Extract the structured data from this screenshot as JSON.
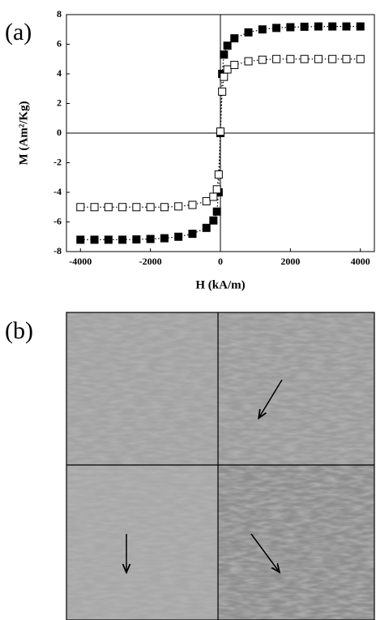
{
  "panels": [
    "(a)",
    "(b)"
  ],
  "chart_data": {
    "type": "line",
    "x_label": "H (kA/m)",
    "y_label": "M (Am²/Kg)",
    "x": [
      -4000,
      -3600,
      -3200,
      -2800,
      -2400,
      -2000,
      -1600,
      -1200,
      -800,
      -400,
      -200,
      -100,
      -50,
      0,
      50,
      100,
      200,
      400,
      800,
      1200,
      1600,
      2000,
      2400,
      2800,
      3200,
      3600,
      4000
    ],
    "series": [
      {
        "color": "#000000",
        "fill": "#000000",
        "values": [
          -7.2,
          -7.2,
          -7.2,
          -7.2,
          -7.18,
          -7.15,
          -7.1,
          -7.0,
          -6.8,
          -6.4,
          -5.9,
          -5.3,
          -4.0,
          0,
          4.0,
          5.3,
          5.9,
          6.4,
          6.8,
          7.0,
          7.1,
          7.15,
          7.18,
          7.2,
          7.2,
          7.2,
          7.2
        ]
      },
      {
        "color": "#000000",
        "fill": "#ffffff",
        "values": [
          -5.0,
          -5.0,
          -5.0,
          -5.0,
          -5.0,
          -5.0,
          -5.0,
          -4.95,
          -4.85,
          -4.6,
          -4.3,
          -3.8,
          -2.8,
          0.1,
          2.8,
          3.8,
          4.3,
          4.6,
          4.85,
          4.95,
          5.0,
          5.0,
          5.0,
          5.0,
          5.0,
          5.0,
          5.0
        ]
      }
    ],
    "xlim": [
      -4400,
      4400
    ],
    "xticks": [
      -4000,
      -2000,
      0,
      2000,
      4000
    ],
    "ylim": [
      -8,
      8
    ],
    "yticks": [
      -8,
      -6,
      -4,
      -2,
      0,
      2,
      4,
      6,
      8
    ]
  }
}
